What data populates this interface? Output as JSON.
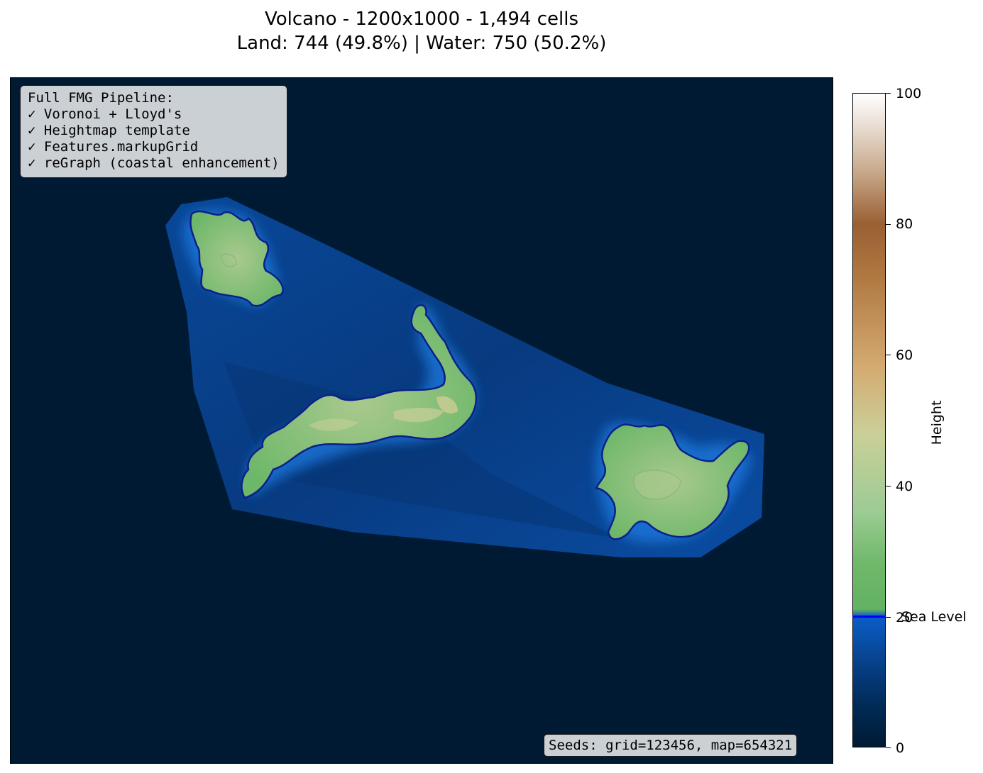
{
  "title_line1": "Volcano - 1200x1000 - 1,494 cells",
  "title_line2": "Land: 744 (49.8%) | Water: 750 (50.2%)",
  "info_lines": [
    "Full FMG Pipeline:",
    "✓ Voronoi + Lloyd's",
    "✓ Heightmap template",
    "✓ Features.markupGrid",
    "✓ reGraph (coastal enhancement)"
  ],
  "seeds_text": "Seeds: grid=123456, map=654321",
  "colorbar": {
    "label": "Height",
    "ticks": [
      "0",
      "20",
      "40",
      "60",
      "80",
      "100"
    ],
    "sea_level_label": "Sea Level"
  },
  "colors": {
    "deep_water": "#001a33",
    "shallow_water": "#0a5cc4",
    "coast_line": "#0d1f8a",
    "land_low": "#6fb86a",
    "land_mid": "#cbcf98",
    "sea_level_line": "#0000ff"
  }
}
